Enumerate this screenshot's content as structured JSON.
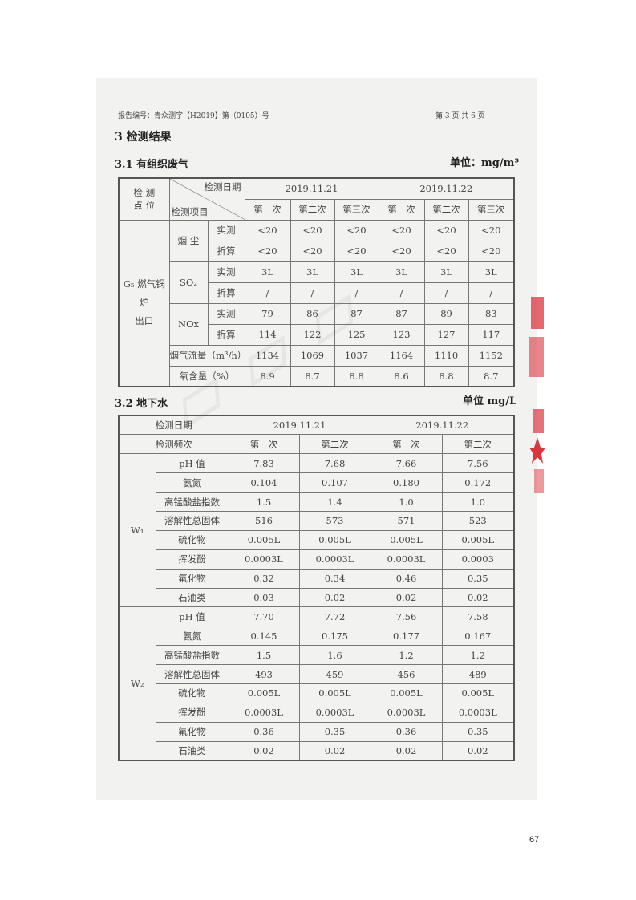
{
  "header": {
    "report_no": "报告编号：青众测字【H2019】第（0105）号",
    "page_info": "第 3 页 共 6 页"
  },
  "section_title": "3 检测结果",
  "gas": {
    "title": "3.1 有组织废气",
    "unit": "单位：mg/m³",
    "point_label": "检 测\n点 位",
    "diag_top": "检测日期",
    "diag_bottom": "检测项目",
    "dates": [
      "2019.11.21",
      "2019.11.22"
    ],
    "times": [
      "第一次",
      "第二次",
      "第三次",
      "第一次",
      "第二次",
      "第三次"
    ],
    "point": "G₅ 燃气锅炉\n出口",
    "items": [
      {
        "name": "烟 尘",
        "rows": [
          {
            "type": "实测",
            "values": [
              "<20",
              "<20",
              "<20",
              "<20",
              "<20",
              "<20"
            ]
          },
          {
            "type": "折算",
            "values": [
              "<20",
              "<20",
              "<20",
              "<20",
              "<20",
              "<20"
            ]
          }
        ]
      },
      {
        "name": "SO₂",
        "rows": [
          {
            "type": "实测",
            "values": [
              "3L",
              "3L",
              "3L",
              "3L",
              "3L",
              "3L"
            ]
          },
          {
            "type": "折算",
            "values": [
              "/",
              "/",
              "/",
              "/",
              "/",
              "/"
            ]
          }
        ]
      },
      {
        "name": "NOx",
        "rows": [
          {
            "type": "实测",
            "values": [
              "79",
              "86",
              "87",
              "87",
              "89",
              "83"
            ]
          },
          {
            "type": "折算",
            "values": [
              "114",
              "122",
              "125",
              "123",
              "127",
              "117"
            ]
          }
        ]
      }
    ],
    "extra": [
      {
        "name": "烟气流量（m³/h）",
        "values": [
          "1134",
          "1069",
          "1037",
          "1164",
          "1110",
          "1152"
        ]
      },
      {
        "name": "氧含量（%）",
        "values": [
          "8.9",
          "8.7",
          "8.8",
          "8.6",
          "8.8",
          "8.7"
        ]
      }
    ]
  },
  "water": {
    "title": "3.2 地下水",
    "unit": "单位 mg/L",
    "date_label": "检测日期",
    "freq_label": "检测频次",
    "dates": [
      "2019.11.21",
      "2019.11.22"
    ],
    "times": [
      "第一次",
      "第二次",
      "第一次",
      "第二次"
    ],
    "wells": [
      {
        "name": "W₁",
        "rows": [
          {
            "item": "pH 值",
            "values": [
              "7.83",
              "7.68",
              "7.66",
              "7.56"
            ]
          },
          {
            "item": "氨氮",
            "values": [
              "0.104",
              "0.107",
              "0.180",
              "0.172"
            ]
          },
          {
            "item": "高锰酸盐指数",
            "values": [
              "1.5",
              "1.4",
              "1.0",
              "1.0"
            ]
          },
          {
            "item": "溶解性总固体",
            "values": [
              "516",
              "573",
              "571",
              "523"
            ]
          },
          {
            "item": "硫化物",
            "values": [
              "0.005L",
              "0.005L",
              "0.005L",
              "0.005L"
            ]
          },
          {
            "item": "挥发酚",
            "values": [
              "0.0003L",
              "0.0003L",
              "0.0003L",
              "0.0003"
            ]
          },
          {
            "item": "氟化物",
            "values": [
              "0.32",
              "0.34",
              "0.46",
              "0.35"
            ]
          },
          {
            "item": "石油类",
            "values": [
              "0.03",
              "0.02",
              "0.02",
              "0.02"
            ]
          }
        ]
      },
      {
        "name": "W₂",
        "rows": [
          {
            "item": "pH 值",
            "values": [
              "7.70",
              "7.72",
              "7.56",
              "7.58"
            ]
          },
          {
            "item": "氨氮",
            "values": [
              "0.145",
              "0.175",
              "0.177",
              "0.167"
            ]
          },
          {
            "item": "高锰酸盐指数",
            "values": [
              "1.5",
              "1.6",
              "1.2",
              "1.2"
            ]
          },
          {
            "item": "溶解性总固体",
            "values": [
              "493",
              "459",
              "456",
              "489"
            ]
          },
          {
            "item": "硫化物",
            "values": [
              "0.005L",
              "0.005L",
              "0.005L",
              "0.005L"
            ]
          },
          {
            "item": "挥发酚",
            "values": [
              "0.0003L",
              "0.0003L",
              "0.0003L",
              "0.0003L"
            ]
          },
          {
            "item": "氟化物",
            "values": [
              "0.36",
              "0.35",
              "0.36",
              "0.35"
            ]
          },
          {
            "item": "石油类",
            "values": [
              "0.02",
              "0.02",
              "0.02",
              "0.02"
            ]
          }
        ]
      }
    ]
  },
  "page_number": "67",
  "colors": {
    "stamp": "#d9363e",
    "scan_bg": "#f2f2f1"
  }
}
